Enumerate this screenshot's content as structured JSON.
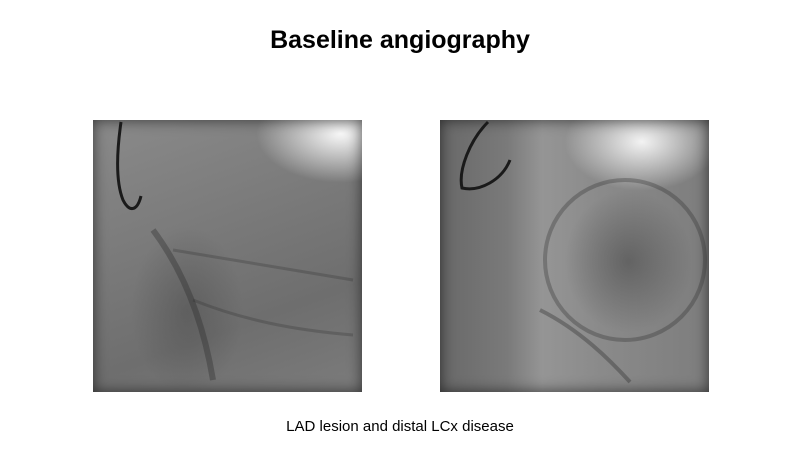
{
  "slide": {
    "title": "Baseline angiography",
    "caption": "LAD lesion and distal LCx disease"
  },
  "images": [
    {
      "name": "left-angiogram",
      "view": "angiography frame"
    },
    {
      "name": "right-angiogram",
      "view": "angiography frame"
    }
  ],
  "colors": {
    "background": "#ffffff",
    "text": "#000000"
  }
}
